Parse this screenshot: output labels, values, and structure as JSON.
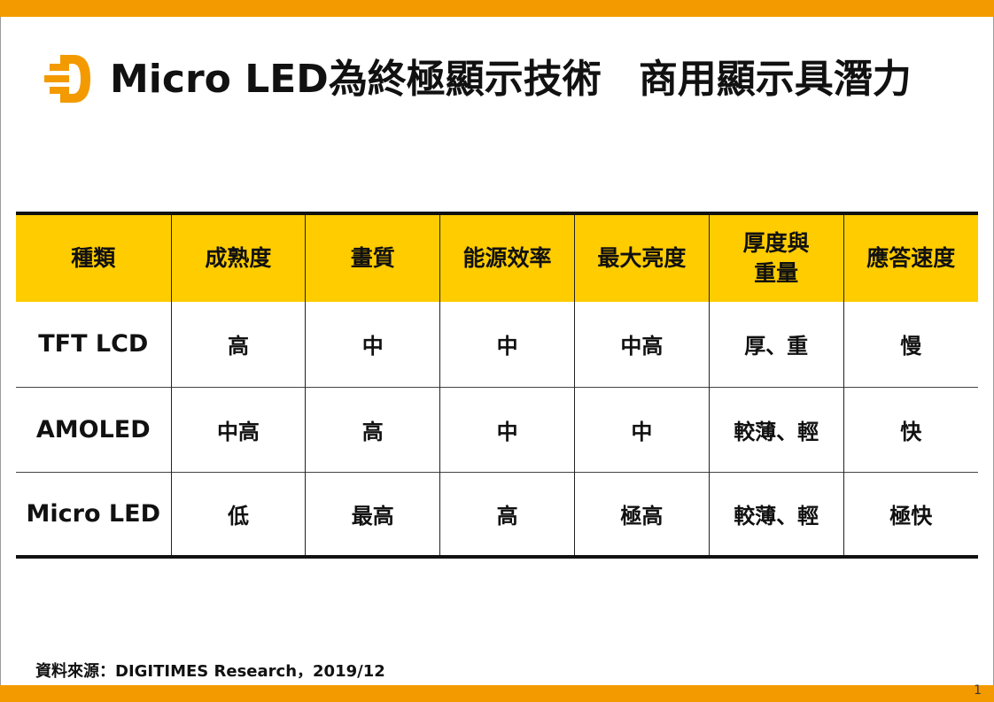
{
  "slide": {
    "title_part1": "Micro LED為終極顯示技術",
    "title_part2": "商用顯示具潛力",
    "source": "資料來源：DIGITIMES Research，2019/12",
    "page_number": "1",
    "logo_icon": "digitimes-d-logo-icon",
    "colors": {
      "accent_bar": "#f39a00",
      "header_fill": "#ffcc00",
      "logo": "#f39a00"
    }
  },
  "table": {
    "headers": [
      {
        "lines": [
          "種類"
        ]
      },
      {
        "lines": [
          "成熟度"
        ]
      },
      {
        "lines": [
          "畫質"
        ]
      },
      {
        "lines": [
          "能源效率"
        ]
      },
      {
        "lines": [
          "最大亮度"
        ]
      },
      {
        "lines": [
          "厚度與",
          "重量"
        ]
      },
      {
        "lines": [
          "應答速度"
        ]
      }
    ],
    "rows": [
      [
        "TFT LCD",
        "高",
        "中",
        "中",
        "中高",
        "厚、重",
        "慢"
      ],
      [
        "AMOLED",
        "中高",
        "高",
        "中",
        "中",
        "較薄、輕",
        "快"
      ],
      [
        "Micro LED",
        "低",
        "最高",
        "高",
        "極高",
        "較薄、輕",
        "極快"
      ]
    ]
  }
}
